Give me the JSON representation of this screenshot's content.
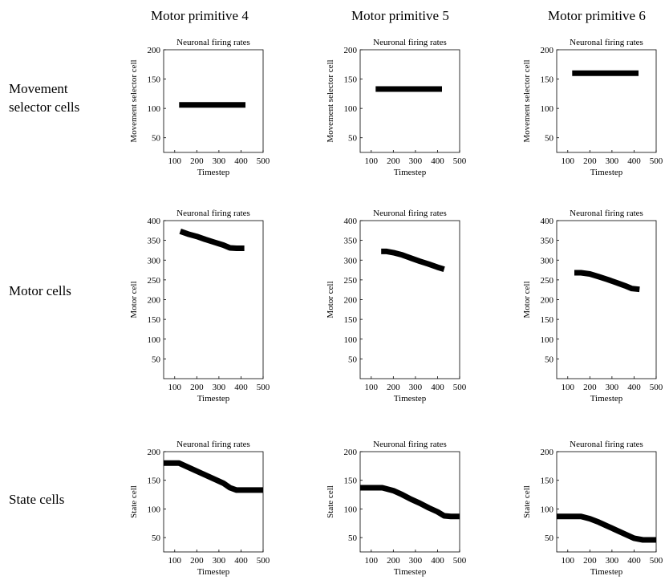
{
  "columns": [
    "Motor primitive 4",
    "Motor primitive 5",
    "Motor primitive 6"
  ],
  "rows": [
    "Movement\nselector cells",
    "Motor cells",
    "State cells"
  ],
  "chart_data": [
    {
      "id": "sel-4",
      "type": "line",
      "title": "Neuronal firing rates",
      "xlabel": "Timestep",
      "ylabel": "Movement selector cell",
      "xlim": [
        50,
        500
      ],
      "ylim": [
        25,
        200
      ],
      "xticks": [
        100,
        200,
        300,
        400,
        500
      ],
      "yticks": [
        50,
        100,
        150,
        200
      ],
      "series": [
        {
          "x": [
            120,
            420
          ],
          "y": [
            106,
            106
          ]
        }
      ]
    },
    {
      "id": "sel-5",
      "type": "line",
      "title": "Neuronal firing rates",
      "xlabel": "Timestep",
      "ylabel": "Movement selector cell",
      "xlim": [
        50,
        500
      ],
      "ylim": [
        25,
        200
      ],
      "xticks": [
        100,
        200,
        300,
        400,
        500
      ],
      "yticks": [
        50,
        100,
        150,
        200
      ],
      "series": [
        {
          "x": [
            120,
            420
          ],
          "y": [
            133,
            133
          ]
        }
      ]
    },
    {
      "id": "sel-6",
      "type": "line",
      "title": "Neuronal firing rates",
      "xlabel": "Timestep",
      "ylabel": "Movement selector cell",
      "xlim": [
        50,
        500
      ],
      "ylim": [
        25,
        200
      ],
      "xticks": [
        100,
        200,
        300,
        400,
        500
      ],
      "yticks": [
        50,
        100,
        150,
        200
      ],
      "series": [
        {
          "x": [
            120,
            420
          ],
          "y": [
            160,
            160
          ]
        }
      ]
    },
    {
      "id": "mot-4",
      "type": "line",
      "title": "Neuronal firing rates",
      "xlabel": "Timestep",
      "ylabel": "Motor cell",
      "xlim": [
        50,
        500
      ],
      "ylim": [
        0,
        400
      ],
      "xticks": [
        100,
        200,
        300,
        400,
        500
      ],
      "yticks": [
        50,
        100,
        150,
        200,
        250,
        300,
        350,
        400
      ],
      "series": [
        {
          "x": [
            125,
            160,
            200,
            240,
            280,
            320,
            350,
            380,
            415
          ],
          "y": [
            373,
            366,
            360,
            352,
            345,
            338,
            331,
            330,
            330
          ]
        }
      ]
    },
    {
      "id": "mot-5",
      "type": "line",
      "title": "Neuronal firing rates",
      "xlabel": "Timestep",
      "ylabel": "Motor cell",
      "xlim": [
        50,
        500
      ],
      "ylim": [
        0,
        400
      ],
      "xticks": [
        100,
        200,
        300,
        400,
        500
      ],
      "yticks": [
        50,
        100,
        150,
        200,
        250,
        300,
        350,
        400
      ],
      "series": [
        {
          "x": [
            145,
            170,
            200,
            240,
            280,
            320,
            360,
            400,
            430
          ],
          "y": [
            322,
            322,
            319,
            313,
            305,
            297,
            290,
            282,
            277
          ]
        }
      ]
    },
    {
      "id": "mot-6",
      "type": "line",
      "title": "Neuronal firing rates",
      "xlabel": "Timestep",
      "ylabel": "Motor cell",
      "xlim": [
        50,
        500
      ],
      "ylim": [
        0,
        400
      ],
      "xticks": [
        100,
        200,
        300,
        400,
        500
      ],
      "yticks": [
        50,
        100,
        150,
        200,
        250,
        300,
        350,
        400
      ],
      "series": [
        {
          "x": [
            130,
            160,
            200,
            240,
            280,
            320,
            360,
            390,
            425
          ],
          "y": [
            268,
            268,
            265,
            258,
            251,
            243,
            235,
            228,
            226
          ]
        }
      ]
    },
    {
      "id": "st-4",
      "type": "line",
      "title": "Neuronal firing rates",
      "xlabel": "Timestep",
      "ylabel": "State cell",
      "xlim": [
        50,
        500
      ],
      "ylim": [
        25,
        200
      ],
      "xticks": [
        100,
        200,
        300,
        400,
        500
      ],
      "yticks": [
        50,
        100,
        150,
        200
      ],
      "series": [
        {
          "x": [
            50,
            120,
            160,
            200,
            240,
            280,
            320,
            350,
            380,
            420,
            500
          ],
          "y": [
            180,
            180,
            173,
            166,
            159,
            152,
            145,
            137,
            133,
            133,
            133
          ]
        }
      ]
    },
    {
      "id": "st-5",
      "type": "line",
      "title": "Neuronal firing rates",
      "xlabel": "Timestep",
      "ylabel": "State cell",
      "xlim": [
        50,
        500
      ],
      "ylim": [
        25,
        200
      ],
      "xticks": [
        100,
        200,
        300,
        400,
        500
      ],
      "yticks": [
        50,
        100,
        150,
        200
      ],
      "series": [
        {
          "x": [
            50,
            150,
            200,
            240,
            280,
            320,
            360,
            400,
            430,
            460,
            500
          ],
          "y": [
            137,
            137,
            132,
            125,
            117,
            110,
            102,
            95,
            88,
            87,
            87
          ]
        }
      ]
    },
    {
      "id": "st-6",
      "type": "line",
      "title": "Neuronal firing rates",
      "xlabel": "Timestep",
      "ylabel": "State cell",
      "xlim": [
        50,
        500
      ],
      "ylim": [
        25,
        200
      ],
      "xticks": [
        100,
        200,
        300,
        400,
        500
      ],
      "yticks": [
        50,
        100,
        150,
        200
      ],
      "series": [
        {
          "x": [
            50,
            160,
            200,
            240,
            280,
            320,
            360,
            400,
            440,
            500
          ],
          "y": [
            87,
            87,
            83,
            77,
            70,
            63,
            56,
            49,
            46,
            46
          ]
        }
      ]
    }
  ]
}
